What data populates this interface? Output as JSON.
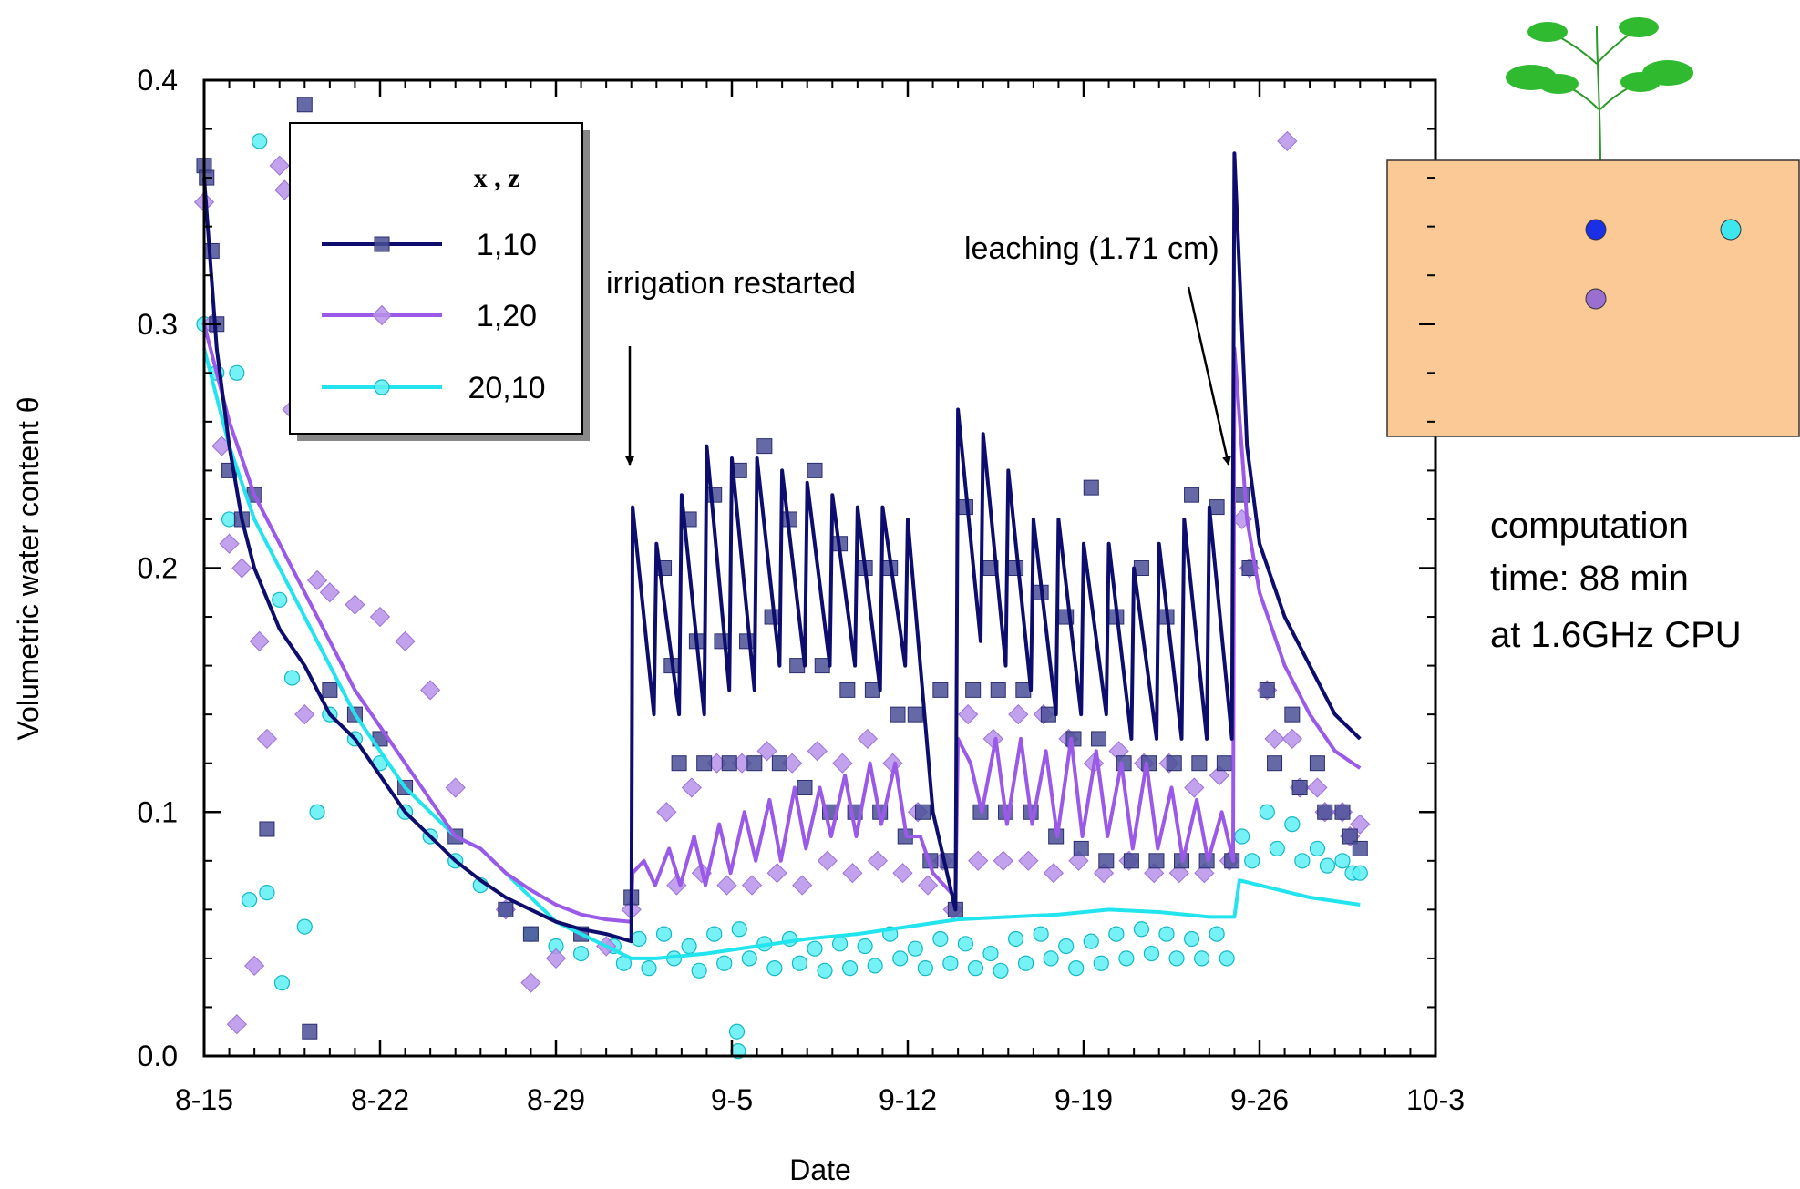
{
  "chart_data": {
    "type": "line",
    "xlabel": "Date",
    "ylabel": "Volumetric water content θ",
    "xlim": [
      0,
      49
    ],
    "xticks": [
      {
        "value": 0,
        "label": "8-15"
      },
      {
        "value": 7,
        "label": "8-22"
      },
      {
        "value": 14,
        "label": "8-29"
      },
      {
        "value": 21,
        "label": "9-5"
      },
      {
        "value": 28,
        "label": "9-12"
      },
      {
        "value": 35,
        "label": "9-19"
      },
      {
        "value": 42,
        "label": "9-26"
      },
      {
        "value": 49,
        "label": "10-3"
      }
    ],
    "ylim": [
      0,
      0.4
    ],
    "yticks": [
      {
        "value": 0,
        "label": "0.0"
      },
      0.1,
      0.2,
      0.3,
      0.4
    ],
    "legend_title": "x , z",
    "annotations": [
      "irrigation restarted",
      "leaching (1.71 cm)"
    ],
    "note": [
      "computation",
      "time:  88 min",
      "at 1.6GHz CPU"
    ],
    "series": [
      {
        "name": "1,10",
        "color": "#0d0d6e",
        "marker": "square",
        "marker_color": "#4a4f95",
        "x": [
          0,
          0.5,
          1,
          1.5,
          2,
          3,
          4,
          5,
          6,
          7,
          8,
          9,
          10,
          11,
          12,
          13,
          14,
          15,
          16,
          17,
          17.05,
          17.9,
          18,
          18.9,
          19,
          19.9,
          20,
          20.9,
          21,
          21.9,
          22,
          22.9,
          23,
          23.9,
          24,
          24.9,
          25,
          25.9,
          26,
          26.9,
          27,
          27.9,
          28,
          29,
          29.9,
          30,
          30.9,
          31,
          31.9,
          32,
          32.9,
          33,
          33.9,
          34,
          34.9,
          35,
          35.9,
          36,
          36.9,
          37,
          37.9,
          38,
          38.9,
          39,
          39.9,
          40,
          40.9,
          41,
          41.5,
          42,
          43,
          44,
          45,
          46
        ],
        "values": [
          0.36,
          0.29,
          0.25,
          0.22,
          0.2,
          0.175,
          0.16,
          0.14,
          0.13,
          0.115,
          0.1,
          0.09,
          0.08,
          0.072,
          0.065,
          0.06,
          0.055,
          0.052,
          0.05,
          0.047,
          0.225,
          0.14,
          0.21,
          0.14,
          0.23,
          0.14,
          0.25,
          0.15,
          0.245,
          0.15,
          0.245,
          0.16,
          0.24,
          0.16,
          0.235,
          0.16,
          0.23,
          0.16,
          0.225,
          0.15,
          0.225,
          0.16,
          0.22,
          0.1,
          0.06,
          0.265,
          0.17,
          0.255,
          0.16,
          0.24,
          0.15,
          0.22,
          0.14,
          0.22,
          0.14,
          0.21,
          0.14,
          0.21,
          0.13,
          0.2,
          0.13,
          0.21,
          0.13,
          0.22,
          0.13,
          0.225,
          0.13,
          0.37,
          0.25,
          0.21,
          0.18,
          0.16,
          0.14,
          0.13
        ],
        "measured": {
          "x": [
            0,
            0.1,
            0.3,
            0.5,
            1,
            1.5,
            2,
            2.5,
            4,
            4.2,
            5,
            6,
            7,
            8,
            10,
            12,
            13,
            15,
            17,
            18.3,
            18.6,
            18.9,
            19.3,
            19.6,
            19.9,
            20.3,
            20.6,
            20.9,
            21.3,
            21.6,
            21.9,
            22.3,
            22.6,
            22.9,
            23.3,
            23.6,
            23.9,
            24.3,
            24.6,
            24.9,
            25.3,
            25.6,
            25.9,
            26.3,
            26.6,
            26.9,
            27.3,
            27.6,
            27.9,
            28.3,
            28.6,
            28.9,
            29.3,
            29.6,
            29.9,
            30.3,
            30.6,
            30.9,
            31.3,
            31.6,
            31.9,
            32.3,
            32.6,
            32.9,
            33.3,
            33.6,
            33.9,
            34.3,
            34.6,
            34.9,
            35.3,
            35.6,
            35.9,
            36.3,
            36.6,
            36.9,
            37.3,
            37.6,
            37.9,
            38.3,
            38.6,
            38.9,
            39.3,
            39.6,
            39.9,
            40.3,
            40.6,
            40.9,
            41.3,
            41.6,
            42.3,
            42.6,
            43.3,
            43.6,
            44.3,
            44.6,
            45.3,
            45.6,
            46
          ],
          "values": [
            0.365,
            0.36,
            0.33,
            0.3,
            0.24,
            0.22,
            0.23,
            0.093,
            0.39,
            0.01,
            0.15,
            0.14,
            0.13,
            0.11,
            0.09,
            0.06,
            0.05,
            0.05,
            0.065,
            0.2,
            0.16,
            0.12,
            0.22,
            0.17,
            0.12,
            0.23,
            0.17,
            0.12,
            0.24,
            0.17,
            0.12,
            0.25,
            0.18,
            0.12,
            0.22,
            0.16,
            0.11,
            0.24,
            0.16,
            0.1,
            0.21,
            0.15,
            0.1,
            0.2,
            0.15,
            0.1,
            0.2,
            0.14,
            0.09,
            0.14,
            0.1,
            0.08,
            0.15,
            0.08,
            0.06,
            0.225,
            0.15,
            0.1,
            0.2,
            0.15,
            0.1,
            0.2,
            0.15,
            0.1,
            0.19,
            0.14,
            0.09,
            0.18,
            0.13,
            0.085,
            0.233,
            0.13,
            0.08,
            0.18,
            0.12,
            0.08,
            0.2,
            0.12,
            0.08,
            0.18,
            0.12,
            0.08,
            0.23,
            0.12,
            0.08,
            0.225,
            0.12,
            0.08,
            0.23,
            0.2,
            0.15,
            0.12,
            0.14,
            0.11,
            0.12,
            0.1,
            0.1,
            0.09,
            0.085
          ]
        }
      },
      {
        "name": "1,20",
        "color": "#9b59e8",
        "marker": "diamond",
        "marker_color": "#b892ea",
        "x": [
          0,
          1,
          2,
          3,
          4,
          5,
          6,
          7,
          8,
          9,
          10,
          11,
          12,
          13,
          14,
          15,
          16,
          17,
          17.05,
          17.5,
          17.95,
          18.5,
          18.95,
          19.5,
          19.95,
          20.5,
          20.95,
          21.5,
          21.95,
          22.5,
          22.95,
          23.5,
          23.95,
          24.5,
          24.95,
          25.5,
          25.95,
          26.5,
          26.95,
          27.5,
          27.95,
          28.5,
          29,
          29.9,
          30,
          30.5,
          30.95,
          31.5,
          31.95,
          32.5,
          32.95,
          33.5,
          33.95,
          34.5,
          34.95,
          35.5,
          35.95,
          36.5,
          36.95,
          37.5,
          37.95,
          38.5,
          38.95,
          39.5,
          39.95,
          40.5,
          40.95,
          41,
          41.5,
          42,
          43,
          44,
          45,
          46
        ],
        "values": [
          0.3,
          0.26,
          0.23,
          0.21,
          0.19,
          0.17,
          0.15,
          0.135,
          0.12,
          0.105,
          0.09,
          0.085,
          0.075,
          0.068,
          0.062,
          0.058,
          0.056,
          0.055,
          0.075,
          0.08,
          0.07,
          0.085,
          0.07,
          0.09,
          0.07,
          0.095,
          0.075,
          0.1,
          0.08,
          0.105,
          0.08,
          0.11,
          0.085,
          0.11,
          0.09,
          0.115,
          0.09,
          0.12,
          0.095,
          0.12,
          0.09,
          0.09,
          0.075,
          0.065,
          0.13,
          0.12,
          0.1,
          0.13,
          0.095,
          0.13,
          0.095,
          0.125,
          0.09,
          0.13,
          0.09,
          0.125,
          0.09,
          0.12,
          0.085,
          0.12,
          0.085,
          0.11,
          0.08,
          0.105,
          0.08,
          0.1,
          0.08,
          0.29,
          0.22,
          0.19,
          0.16,
          0.14,
          0.125,
          0.118
        ],
        "measured": {
          "x": [
            0,
            0.3,
            0.7,
            1,
            1.3,
            1.5,
            2,
            2.2,
            2.5,
            3,
            3.2,
            3.5,
            4,
            4.5,
            5,
            6,
            7,
            8,
            9,
            10,
            12,
            13,
            14,
            16,
            17,
            18.4,
            18.8,
            19.4,
            19.8,
            20.4,
            20.8,
            21.4,
            21.8,
            22.4,
            22.8,
            23.4,
            23.8,
            24.4,
            24.8,
            25.4,
            25.8,
            26.4,
            26.8,
            27.4,
            27.8,
            28.4,
            28.8,
            29.4,
            29.8,
            30.4,
            30.8,
            31.4,
            31.8,
            32.4,
            32.8,
            33.4,
            33.8,
            34.4,
            34.8,
            35.4,
            35.8,
            36.4,
            36.8,
            37.4,
            37.8,
            38.4,
            38.8,
            39.4,
            39.8,
            40.4,
            40.8,
            41.3,
            41.6,
            42.3,
            42.6,
            43.3,
            43.6,
            44.3,
            44.6,
            45.3,
            45.6,
            46,
            43.1
          ],
          "values": [
            0.35,
            0.3,
            0.25,
            0.21,
            0.013,
            0.2,
            0.037,
            0.17,
            0.13,
            0.365,
            0.355,
            0.265,
            0.14,
            0.195,
            0.19,
            0.185,
            0.18,
            0.17,
            0.15,
            0.11,
            0.06,
            0.03,
            0.04,
            0.045,
            0.06,
            0.1,
            0.07,
            0.11,
            0.075,
            0.12,
            0.07,
            0.12,
            0.07,
            0.125,
            0.075,
            0.12,
            0.07,
            0.125,
            0.08,
            0.12,
            0.075,
            0.13,
            0.08,
            0.12,
            0.075,
            0.1,
            0.07,
            0.08,
            0.06,
            0.14,
            0.08,
            0.13,
            0.08,
            0.14,
            0.08,
            0.14,
            0.075,
            0.13,
            0.08,
            0.12,
            0.075,
            0.125,
            0.08,
            0.12,
            0.075,
            0.12,
            0.075,
            0.11,
            0.075,
            0.115,
            0.08,
            0.22,
            0.2,
            0.15,
            0.13,
            0.13,
            0.11,
            0.11,
            0.1,
            0.1,
            0.09,
            0.095,
            0.375
          ]
        }
      },
      {
        "name": "20,10",
        "color": "#22e4ee",
        "marker": "circle",
        "marker_color": "#5ef0f4",
        "x": [
          0,
          1,
          2,
          3,
          4,
          5,
          6,
          7,
          8,
          9,
          10,
          11,
          12,
          13,
          14,
          15,
          16,
          17,
          18,
          20,
          22,
          24,
          26,
          28,
          30,
          32,
          34,
          36,
          38,
          40,
          41,
          41.2,
          42,
          44,
          46
        ],
        "values": [
          0.29,
          0.25,
          0.22,
          0.2,
          0.18,
          0.16,
          0.14,
          0.125,
          0.11,
          0.1,
          0.09,
          0.085,
          0.075,
          0.065,
          0.055,
          0.05,
          0.045,
          0.04,
          0.04,
          0.042,
          0.045,
          0.048,
          0.05,
          0.053,
          0.056,
          0.057,
          0.058,
          0.06,
          0.059,
          0.057,
          0.057,
          0.072,
          0.07,
          0.065,
          0.062
        ],
        "measured": {
          "x": [
            0,
            0.5,
            1,
            1.3,
            1.8,
            2.2,
            2.5,
            3,
            3.1,
            3.5,
            4,
            4.5,
            5,
            6,
            7,
            8,
            9,
            10,
            11,
            12,
            13,
            14,
            15,
            16.3,
            16.7,
            17.3,
            17.7,
            18.3,
            18.7,
            19.3,
            19.7,
            20.3,
            20.7,
            21.3,
            21.7,
            22.3,
            22.7,
            23.3,
            23.7,
            24.3,
            24.7,
            25.3,
            25.7,
            26.3,
            26.7,
            27.3,
            27.7,
            28.3,
            28.7,
            29.3,
            29.7,
            30.3,
            30.7,
            31.3,
            31.7,
            32.3,
            32.7,
            33.3,
            33.7,
            34.3,
            34.7,
            35.3,
            35.7,
            36.3,
            36.7,
            37.3,
            37.7,
            38.3,
            38.7,
            39.3,
            39.7,
            40.3,
            40.7,
            41.3,
            41.7,
            42.3,
            42.7,
            43.3,
            43.7,
            44.3,
            44.7,
            45.3,
            45.7,
            46,
            21.2,
            21.25
          ],
          "values": [
            0.3,
            0.28,
            0.22,
            0.28,
            0.064,
            0.375,
            0.067,
            0.187,
            0.03,
            0.155,
            0.053,
            0.1,
            0.14,
            0.13,
            0.12,
            0.1,
            0.09,
            0.08,
            0.07,
            0.06,
            0.05,
            0.045,
            0.042,
            0.045,
            0.038,
            0.048,
            0.036,
            0.05,
            0.04,
            0.045,
            0.035,
            0.05,
            0.038,
            0.052,
            0.04,
            0.046,
            0.036,
            0.048,
            0.038,
            0.044,
            0.035,
            0.046,
            0.036,
            0.045,
            0.037,
            0.05,
            0.04,
            0.044,
            0.036,
            0.048,
            0.038,
            0.046,
            0.036,
            0.042,
            0.035,
            0.048,
            0.038,
            0.05,
            0.04,
            0.045,
            0.036,
            0.047,
            0.038,
            0.05,
            0.04,
            0.052,
            0.042,
            0.05,
            0.04,
            0.048,
            0.04,
            0.05,
            0.04,
            0.09,
            0.08,
            0.1,
            0.085,
            0.095,
            0.08,
            0.085,
            0.078,
            0.08,
            0.075,
            0.075,
            0.01,
            0.002
          ]
        }
      }
    ]
  }
}
